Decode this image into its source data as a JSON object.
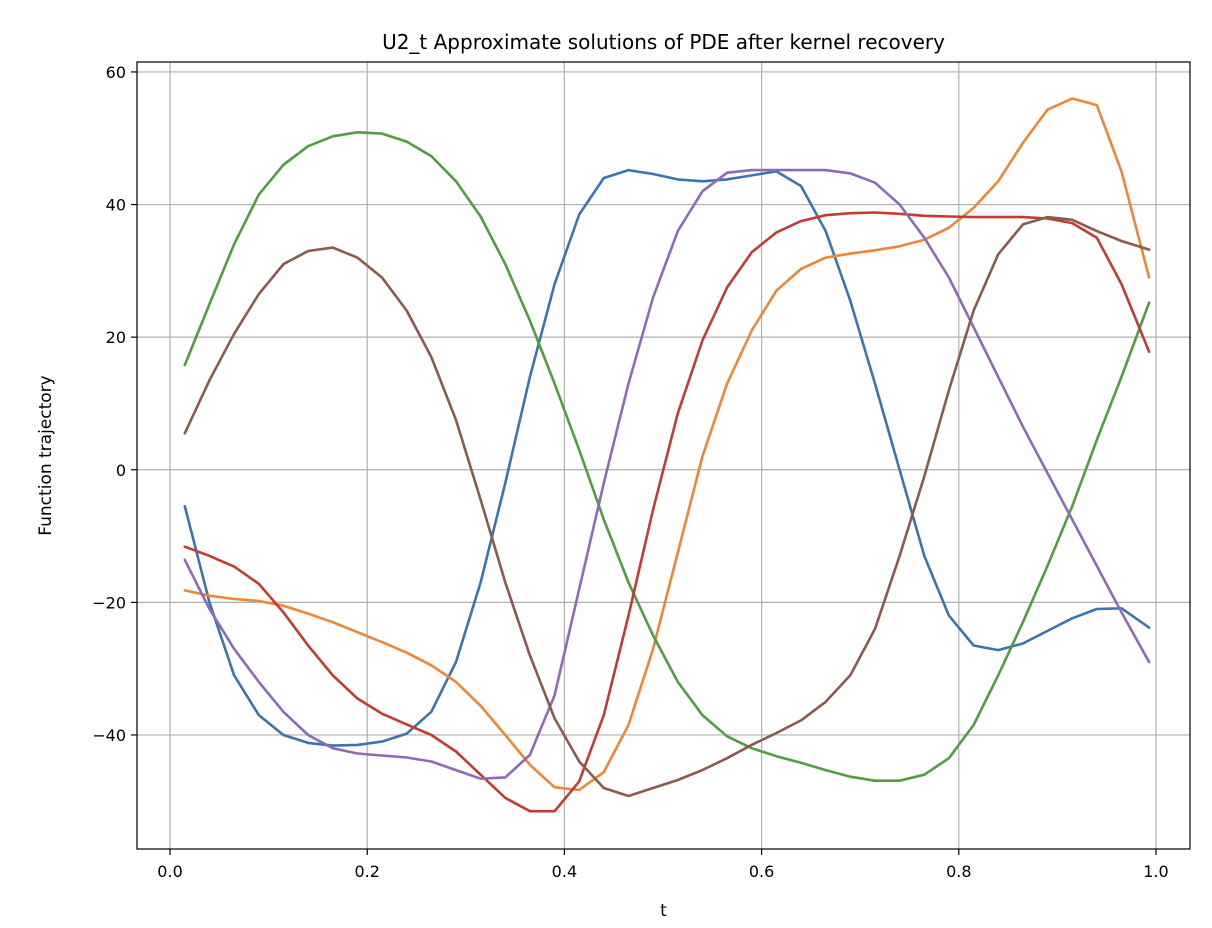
{
  "chart_data": {
    "type": "line",
    "title": "U2_t Approximate solutions of PDE after kernel recovery",
    "xlabel": "t",
    "ylabel": "Function trajectory",
    "xlim": [
      -0.0335,
      1.0345
    ],
    "ylim": [
      -57.2,
      61.5
    ],
    "x_ticks": [
      0.0,
      0.2,
      0.4,
      0.6,
      0.8,
      1.0
    ],
    "x_tick_labels": [
      "0.0",
      "0.2",
      "0.4",
      "0.6",
      "0.8",
      "1.0"
    ],
    "y_ticks": [
      -40,
      -20,
      0,
      20,
      40,
      60
    ],
    "y_tick_labels": [
      "−40",
      "−20",
      "0",
      "20",
      "40",
      "60"
    ],
    "grid": true,
    "legend": "none",
    "series": [
      {
        "color": "#3b75af",
        "x": [
          0.015,
          0.04,
          0.065,
          0.09,
          0.115,
          0.14,
          0.165,
          0.19,
          0.215,
          0.24,
          0.265,
          0.29,
          0.315,
          0.34,
          0.365,
          0.39,
          0.415,
          0.44,
          0.465,
          0.49,
          0.515,
          0.54,
          0.565,
          0.59,
          0.615,
          0.64,
          0.665,
          0.69,
          0.715,
          0.74,
          0.765,
          0.79,
          0.815,
          0.84,
          0.865,
          0.89,
          0.915,
          0.94,
          0.965,
          0.993
        ],
        "y": [
          -5.5,
          -20,
          -31,
          -37,
          -40,
          -41.2,
          -41.6,
          -41.5,
          -41,
          -39.8,
          -36.5,
          -29,
          -17,
          -2,
          14,
          28,
          38.5,
          44,
          45.2,
          44.6,
          43.8,
          43.5,
          43.8,
          44.4,
          45,
          42.8,
          36,
          25.5,
          13,
          0,
          -13,
          -22,
          -26.5,
          -27.2,
          -26.2,
          -24.3,
          -22.4,
          -21,
          -20.9,
          -23.8
        ]
      },
      {
        "color": "#ef8636",
        "x": [
          0.015,
          0.04,
          0.065,
          0.09,
          0.115,
          0.14,
          0.165,
          0.19,
          0.215,
          0.24,
          0.265,
          0.29,
          0.315,
          0.34,
          0.365,
          0.39,
          0.415,
          0.44,
          0.465,
          0.49,
          0.515,
          0.54,
          0.565,
          0.59,
          0.615,
          0.64,
          0.665,
          0.69,
          0.715,
          0.74,
          0.765,
          0.79,
          0.815,
          0.84,
          0.865,
          0.89,
          0.915,
          0.94,
          0.965,
          0.993
        ],
        "y": [
          -18.2,
          -19,
          -19.5,
          -19.8,
          -20.5,
          -21.7,
          -23,
          -24.5,
          -26,
          -27.6,
          -29.5,
          -32,
          -35.6,
          -40,
          -44.5,
          -47.9,
          -48.3,
          -45.6,
          -38.5,
          -27,
          -12.5,
          2,
          13,
          21,
          27,
          30.3,
          32,
          32.6,
          33.1,
          33.7,
          34.7,
          36.5,
          39.5,
          43.5,
          49.3,
          54.3,
          56,
          55,
          45,
          29
        ]
      },
      {
        "color": "#519e3e",
        "x": [
          0.015,
          0.04,
          0.065,
          0.09,
          0.115,
          0.14,
          0.165,
          0.19,
          0.215,
          0.24,
          0.265,
          0.29,
          0.315,
          0.34,
          0.365,
          0.39,
          0.415,
          0.44,
          0.465,
          0.49,
          0.515,
          0.54,
          0.565,
          0.59,
          0.615,
          0.64,
          0.665,
          0.69,
          0.715,
          0.74,
          0.765,
          0.79,
          0.815,
          0.84,
          0.865,
          0.89,
          0.915,
          0.94,
          0.965,
          0.993
        ],
        "y": [
          15.8,
          25,
          34,
          41.5,
          46,
          48.8,
          50.3,
          50.9,
          50.7,
          49.5,
          47.3,
          43.5,
          38.2,
          31,
          22.5,
          13,
          3,
          -7.5,
          -17,
          -25,
          -32,
          -37,
          -40.2,
          -42,
          -43.2,
          -44.2,
          -45.3,
          -46.3,
          -46.9,
          -46.9,
          -46,
          -43.5,
          -38.5,
          -31,
          -23,
          -14.5,
          -5.5,
          4.5,
          14,
          25.2
        ]
      },
      {
        "color": "#c53a32",
        "x": [
          0.015,
          0.04,
          0.065,
          0.09,
          0.115,
          0.14,
          0.165,
          0.19,
          0.215,
          0.24,
          0.265,
          0.29,
          0.315,
          0.34,
          0.365,
          0.39,
          0.415,
          0.44,
          0.465,
          0.49,
          0.515,
          0.54,
          0.565,
          0.59,
          0.615,
          0.64,
          0.665,
          0.69,
          0.715,
          0.74,
          0.765,
          0.79,
          0.815,
          0.84,
          0.865,
          0.89,
          0.915,
          0.94,
          0.965,
          0.993
        ],
        "y": [
          -11.6,
          -13,
          -14.6,
          -17.2,
          -21.5,
          -26.5,
          -31,
          -34.5,
          -36.8,
          -38.4,
          -40,
          -42.5,
          -46,
          -49.5,
          -51.5,
          -51.5,
          -47,
          -37,
          -22,
          -6,
          8.5,
          19.5,
          27.5,
          32.8,
          35.8,
          37.5,
          38.4,
          38.7,
          38.8,
          38.6,
          38.3,
          38.2,
          38.1,
          38.1,
          38.1,
          37.9,
          37.2,
          35,
          28,
          17.8
        ]
      },
      {
        "color": "#8d6aba",
        "x": [
          0.015,
          0.04,
          0.065,
          0.09,
          0.115,
          0.14,
          0.165,
          0.19,
          0.215,
          0.24,
          0.265,
          0.29,
          0.315,
          0.34,
          0.365,
          0.39,
          0.415,
          0.44,
          0.465,
          0.49,
          0.515,
          0.54,
          0.565,
          0.59,
          0.615,
          0.64,
          0.665,
          0.69,
          0.715,
          0.74,
          0.765,
          0.79,
          0.815,
          0.84,
          0.865,
          0.89,
          0.915,
          0.94,
          0.965,
          0.993
        ],
        "y": [
          -13.6,
          -21,
          -27,
          -32,
          -36.5,
          -40,
          -42,
          -42.8,
          -43.1,
          -43.4,
          -44,
          -45.3,
          -46.6,
          -46.4,
          -43,
          -34,
          -18,
          -2,
          13,
          26,
          36,
          42,
          44.8,
          45.2,
          45.2,
          45.2,
          45.2,
          44.7,
          43.3,
          40,
          35,
          29,
          21.5,
          14,
          6.5,
          -0.5,
          -7.5,
          -14.5,
          -21.5,
          -29
        ]
      },
      {
        "color": "#8c5a4d",
        "x": [
          0.015,
          0.04,
          0.065,
          0.09,
          0.115,
          0.14,
          0.165,
          0.19,
          0.215,
          0.24,
          0.265,
          0.29,
          0.315,
          0.34,
          0.365,
          0.39,
          0.415,
          0.44,
          0.465,
          0.49,
          0.515,
          0.54,
          0.565,
          0.59,
          0.615,
          0.64,
          0.665,
          0.69,
          0.715,
          0.74,
          0.765,
          0.79,
          0.815,
          0.84,
          0.865,
          0.89,
          0.915,
          0.94,
          0.965,
          0.993
        ],
        "y": [
          5.5,
          13.5,
          20.5,
          26.5,
          31,
          33,
          33.5,
          32,
          29,
          24,
          17,
          7.5,
          -4.5,
          -17,
          -28,
          -37.5,
          -44,
          -48,
          -49.2,
          -48,
          -46.8,
          -45.3,
          -43.5,
          -41.5,
          -39.7,
          -37.8,
          -35,
          -31,
          -24,
          -13,
          -1,
          12,
          24,
          32.5,
          37,
          38.1,
          37.7,
          36,
          34.5,
          33.2
        ]
      }
    ]
  }
}
